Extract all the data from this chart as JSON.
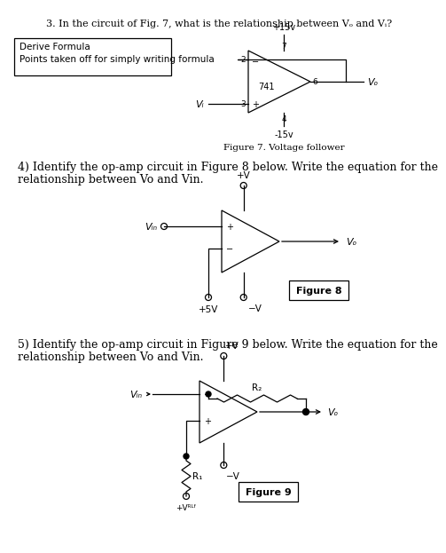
{
  "title3": "3. In the circuit of Fig. 7, what is the relationship between Vₒ and Vᵢ?",
  "box_text_line1": "Derive Formula",
  "box_text_line2": "Points taken off for simply writing formula",
  "fig7_caption": "Figure 7. Voltage follower",
  "q4_text_line1": "4) Identify the op-amp circuit in Figure 8 below. Write the equation for the",
  "q4_text_line2": "relationship between Vo and Vin.",
  "fig8_caption": "Figure 8",
  "q5_text_line1": "5) Identify the op-amp circuit in Figure 9 below. Write the equation for the",
  "q5_text_line2": "relationship between Vo and Vin.",
  "fig9_caption": "Figure 9",
  "bg_color": "#ffffff",
  "text_color": "#000000"
}
